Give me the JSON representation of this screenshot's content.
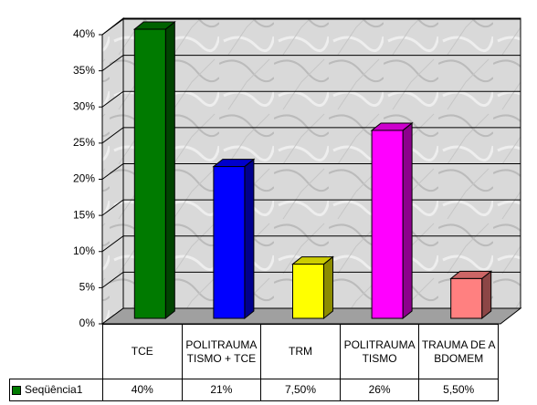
{
  "chart_data": {
    "type": "bar",
    "categories": [
      "TCE",
      "POLITRAUMATISMO + TCE",
      "TRM",
      "POLITRAUMATISMO",
      "TRAUMA DE ABDOMEM"
    ],
    "series": [
      {
        "name": "Seqüência1",
        "color": "#007a00",
        "values": [
          40,
          21,
          7.5,
          26,
          5.5
        ],
        "value_labels": [
          "40%",
          "21%",
          "7,50%",
          "26%",
          "5,50%"
        ]
      }
    ],
    "colors": [
      "#007a00",
      "#0000ff",
      "#ffff00",
      "#ff00ff",
      "#ff8080"
    ],
    "ylim": [
      0,
      40
    ],
    "yticks": [
      {
        "value": 0,
        "label": "0%"
      },
      {
        "value": 5,
        "label": "5%"
      },
      {
        "value": 10,
        "label": "10%"
      },
      {
        "value": 15,
        "label": "15%"
      },
      {
        "value": 20,
        "label": "20%"
      },
      {
        "value": 25,
        "label": "25%"
      },
      {
        "value": 30,
        "label": "30%"
      },
      {
        "value": 35,
        "label": "35%"
      },
      {
        "value": 40,
        "label": "40%"
      }
    ],
    "grid": true
  }
}
